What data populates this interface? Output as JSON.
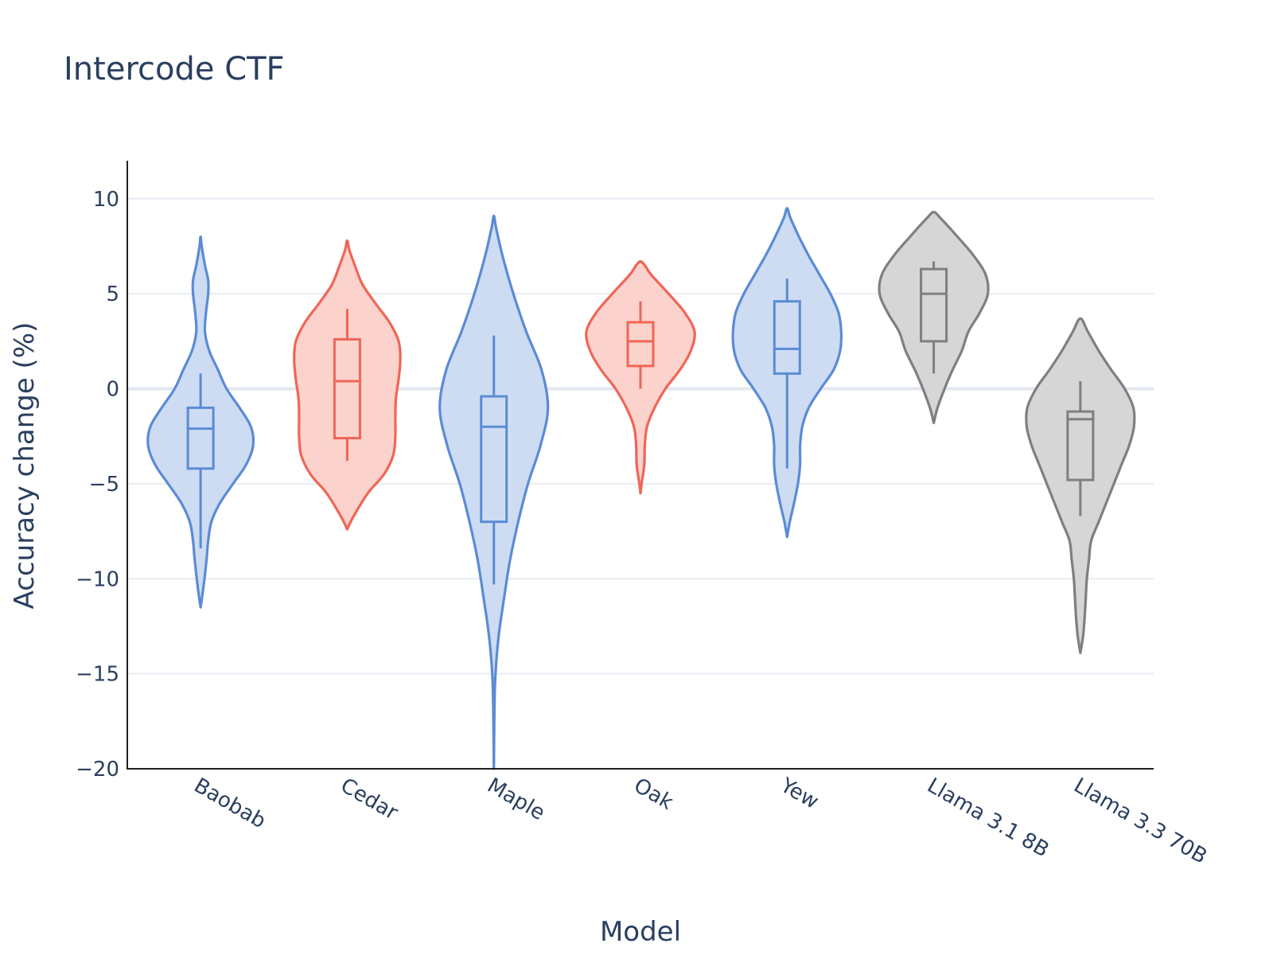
{
  "chart_data": {
    "type": "violin",
    "title": "Intercode CTF",
    "xlabel": "Model",
    "ylabel": "Accuracy change (%)",
    "ylim": [
      -20,
      12
    ],
    "yticks": [
      10,
      5,
      0,
      -5,
      -10,
      -15,
      -20
    ],
    "ytick_labels": [
      "10",
      "5",
      "0",
      "−5",
      "−10",
      "−15",
      "−20"
    ],
    "grid": true,
    "categories": [
      "Baobab",
      "Cedar",
      "Maple",
      "Oak",
      "Yew",
      "Llama 3.1 8B",
      "Llama 3.3 70B"
    ],
    "series": [
      {
        "name": "Baobab",
        "color": "#5b8bd6",
        "fill": "#cddcf2",
        "box": {
          "min": -8.4,
          "q1": -4.2,
          "median": -2.1,
          "q3": -1.0,
          "max": 0.8
        },
        "density": [
          [
            -11.5,
            0.0
          ],
          [
            -10.5,
            0.05
          ],
          [
            -9.0,
            0.11
          ],
          [
            -8.0,
            0.14
          ],
          [
            -7.0,
            0.2
          ],
          [
            -6.0,
            0.36
          ],
          [
            -5.0,
            0.6
          ],
          [
            -4.0,
            0.84
          ],
          [
            -3.0,
            0.97
          ],
          [
            -2.0,
            0.93
          ],
          [
            -1.0,
            0.72
          ],
          [
            0.0,
            0.48
          ],
          [
            1.0,
            0.32
          ],
          [
            2.0,
            0.16
          ],
          [
            3.0,
            0.08
          ],
          [
            4.0,
            0.1
          ],
          [
            5.0,
            0.14
          ],
          [
            5.7,
            0.14
          ],
          [
            6.5,
            0.08
          ],
          [
            7.5,
            0.02
          ],
          [
            8.0,
            0.0
          ]
        ]
      },
      {
        "name": "Cedar",
        "color": "#ef6657",
        "fill": "#fcd2cc",
        "box": {
          "min": -3.8,
          "q1": -2.6,
          "median": 0.4,
          "q3": 2.6,
          "max": 4.2
        },
        "density": [
          [
            -7.4,
            0.0
          ],
          [
            -6.8,
            0.1
          ],
          [
            -5.5,
            0.38
          ],
          [
            -4.5,
            0.68
          ],
          [
            -3.5,
            0.85
          ],
          [
            -2.5,
            0.89
          ],
          [
            -1.5,
            0.89
          ],
          [
            -0.5,
            0.9
          ],
          [
            0.5,
            0.95
          ],
          [
            1.5,
            0.98
          ],
          [
            2.5,
            0.95
          ],
          [
            3.5,
            0.78
          ],
          [
            4.5,
            0.52
          ],
          [
            5.5,
            0.28
          ],
          [
            6.5,
            0.14
          ],
          [
            7.3,
            0.04
          ],
          [
            7.8,
            0.0
          ]
        ]
      },
      {
        "name": "Maple",
        "color": "#5b8bd6",
        "fill": "#cddcf2",
        "box": {
          "min": -10.3,
          "q1": -7.0,
          "median": -2.0,
          "q3": -0.4,
          "max": 2.8
        },
        "density": [
          [
            -20.0,
            0.0
          ],
          [
            -17.0,
            0.01
          ],
          [
            -15.0,
            0.03
          ],
          [
            -13.0,
            0.09
          ],
          [
            -11.0,
            0.19
          ],
          [
            -9.0,
            0.3
          ],
          [
            -7.0,
            0.45
          ],
          [
            -5.0,
            0.63
          ],
          [
            -3.0,
            0.86
          ],
          [
            -1.0,
            1.0
          ],
          [
            1.0,
            0.88
          ],
          [
            3.0,
            0.6
          ],
          [
            5.0,
            0.36
          ],
          [
            7.0,
            0.16
          ],
          [
            8.5,
            0.04
          ],
          [
            9.1,
            0.0
          ]
        ]
      },
      {
        "name": "Oak",
        "color": "#ef6657",
        "fill": "#fcd2cc",
        "box": {
          "min": 0.0,
          "q1": 1.2,
          "median": 2.5,
          "q3": 3.5,
          "max": 4.6
        },
        "density": [
          [
            -5.5,
            0.0
          ],
          [
            -5.0,
            0.02
          ],
          [
            -4.0,
            0.07
          ],
          [
            -3.0,
            0.08
          ],
          [
            -2.0,
            0.12
          ],
          [
            -1.0,
            0.26
          ],
          [
            0.0,
            0.46
          ],
          [
            1.0,
            0.73
          ],
          [
            2.0,
            0.93
          ],
          [
            3.0,
            1.0
          ],
          [
            4.0,
            0.82
          ],
          [
            5.0,
            0.52
          ],
          [
            6.0,
            0.2
          ],
          [
            6.5,
            0.08
          ],
          [
            6.7,
            0.0
          ]
        ]
      },
      {
        "name": "Yew",
        "color": "#5b8bd6",
        "fill": "#cddcf2",
        "box": {
          "min": -4.2,
          "q1": 0.8,
          "median": 2.1,
          "q3": 4.6,
          "max": 5.8
        },
        "density": [
          [
            -7.8,
            0.0
          ],
          [
            -7.0,
            0.05
          ],
          [
            -6.0,
            0.13
          ],
          [
            -5.0,
            0.2
          ],
          [
            -4.0,
            0.24
          ],
          [
            -3.0,
            0.24
          ],
          [
            -2.0,
            0.28
          ],
          [
            -1.0,
            0.4
          ],
          [
            0.0,
            0.62
          ],
          [
            1.0,
            0.86
          ],
          [
            2.0,
            0.98
          ],
          [
            3.0,
            1.0
          ],
          [
            4.0,
            0.95
          ],
          [
            5.0,
            0.8
          ],
          [
            6.0,
            0.6
          ],
          [
            7.0,
            0.4
          ],
          [
            8.0,
            0.22
          ],
          [
            9.0,
            0.06
          ],
          [
            9.5,
            0.0
          ]
        ]
      },
      {
        "name": "Llama 3.1 8B",
        "color": "#7f7f7f",
        "fill": "#d6d6d6",
        "box": {
          "min": 0.8,
          "q1": 2.5,
          "median": 5.0,
          "q3": 6.3,
          "max": 6.7
        },
        "density": [
          [
            -1.8,
            0.0
          ],
          [
            -1.0,
            0.07
          ],
          [
            0.0,
            0.2
          ],
          [
            1.0,
            0.35
          ],
          [
            2.0,
            0.52
          ],
          [
            3.0,
            0.64
          ],
          [
            4.0,
            0.85
          ],
          [
            5.0,
            1.0
          ],
          [
            6.0,
            0.96
          ],
          [
            7.0,
            0.74
          ],
          [
            8.0,
            0.44
          ],
          [
            9.0,
            0.12
          ],
          [
            9.3,
            0.0
          ]
        ]
      },
      {
        "name": "Llama 3.3 70B",
        "color": "#7f7f7f",
        "fill": "#d6d6d6",
        "box": {
          "min": -6.7,
          "q1": -4.8,
          "median": -1.6,
          "q3": -1.2,
          "max": 0.4
        },
        "density": [
          [
            -13.9,
            0.0
          ],
          [
            -13.0,
            0.05
          ],
          [
            -12.0,
            0.08
          ],
          [
            -11.0,
            0.1
          ],
          [
            -10.0,
            0.12
          ],
          [
            -9.0,
            0.16
          ],
          [
            -8.0,
            0.2
          ],
          [
            -7.0,
            0.34
          ],
          [
            -6.0,
            0.48
          ],
          [
            -5.0,
            0.62
          ],
          [
            -4.0,
            0.76
          ],
          [
            -3.0,
            0.9
          ],
          [
            -2.0,
            0.99
          ],
          [
            -1.0,
            0.98
          ],
          [
            0.0,
            0.82
          ],
          [
            1.0,
            0.57
          ],
          [
            2.0,
            0.34
          ],
          [
            3.0,
            0.14
          ],
          [
            3.7,
            0.0
          ]
        ]
      }
    ]
  }
}
